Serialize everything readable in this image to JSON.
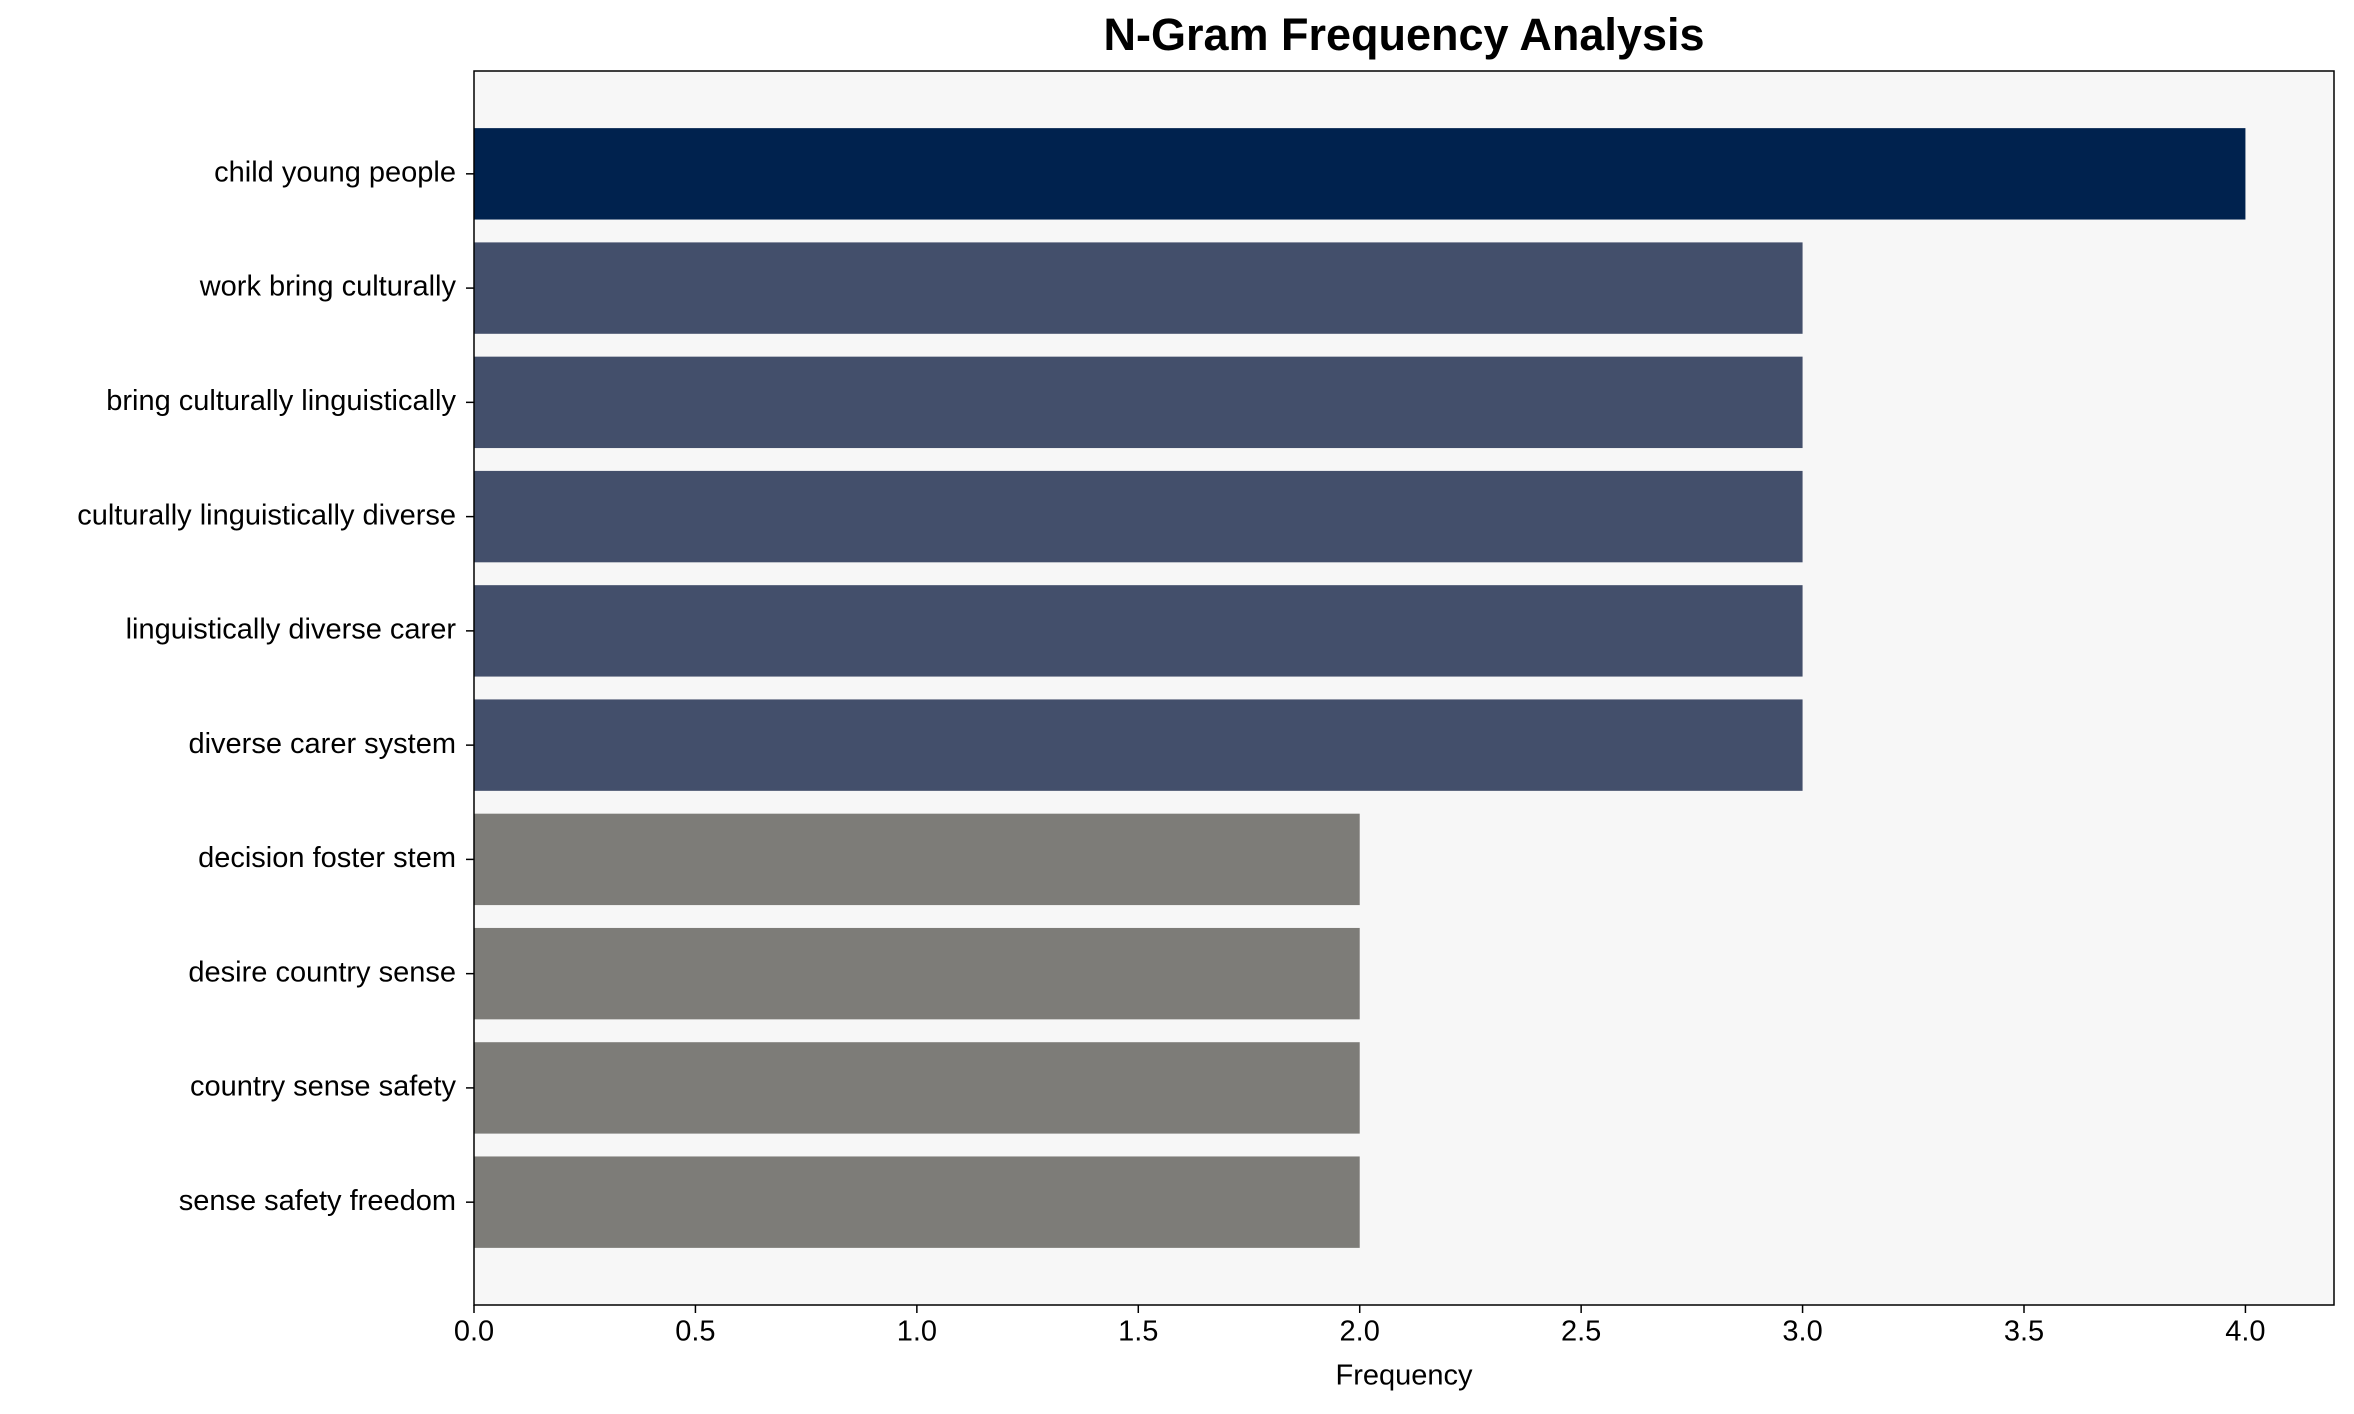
{
  "chart_data": {
    "type": "barh",
    "title": "N-Gram Frequency Analysis",
    "xlabel": "Frequency",
    "categories": [
      "child young people",
      "work bring culturally",
      "bring culturally linguistically",
      "culturally linguistically diverse",
      "linguistically diverse carer",
      "diverse carer system",
      "decision foster stem",
      "desire country sense",
      "country sense safety",
      "sense safety freedom"
    ],
    "values": [
      4,
      3,
      3,
      3,
      3,
      3,
      2,
      2,
      2,
      2
    ],
    "colors": [
      "#00224e",
      "#434f6b",
      "#434f6b",
      "#434f6b",
      "#434f6b",
      "#434f6b",
      "#7d7c78",
      "#7d7c78",
      "#7d7c78",
      "#7d7c78"
    ],
    "xlim": [
      0,
      4.2
    ],
    "xticks": [
      {
        "value": 0,
        "label": "0.0"
      },
      {
        "value": 0.5,
        "label": "0.5"
      },
      {
        "value": 1,
        "label": "1.0"
      },
      {
        "value": 1.5,
        "label": "1.5"
      },
      {
        "value": 2,
        "label": "2.0"
      },
      {
        "value": 2.5,
        "label": "2.5"
      },
      {
        "value": 3,
        "label": "3.0"
      },
      {
        "value": 3.5,
        "label": "3.5"
      },
      {
        "value": 4,
        "label": "4.0"
      }
    ],
    "background": "#f7f7f7"
  }
}
